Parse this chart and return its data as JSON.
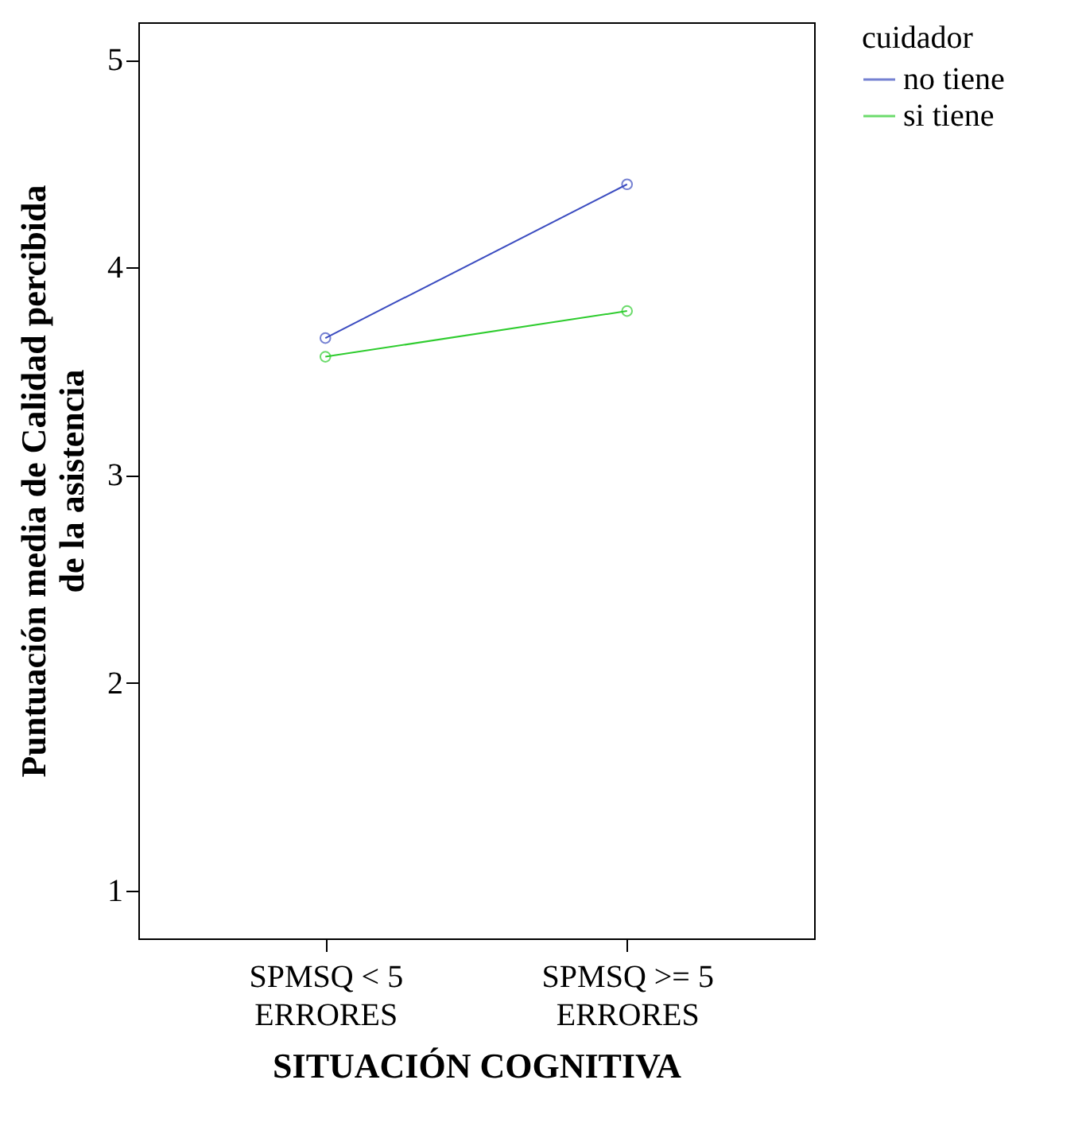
{
  "chart_data": {
    "type": "line",
    "xlabel": "SITUACIÓN COGNITIVA",
    "ylabel": "Puntuación media de Calidad percibida de la asistencia",
    "legend_title": "cuidador",
    "categories": [
      "SPMSQ < 5 ERRORES",
      "SPMSQ >= 5 ERRORES"
    ],
    "series": [
      {
        "name": "no tiene",
        "color": "#3b4cc0",
        "values": [
          3.66,
          4.4
        ]
      },
      {
        "name": "si tiene",
        "color": "#2ecc2e",
        "values": [
          3.57,
          3.79
        ]
      }
    ],
    "ylim": [
      0.77,
      5.18
    ],
    "yticks": [
      1,
      2,
      3,
      4,
      5
    ],
    "grid": false,
    "legend": "right",
    "marker": "circle",
    "line_style": "solid"
  }
}
